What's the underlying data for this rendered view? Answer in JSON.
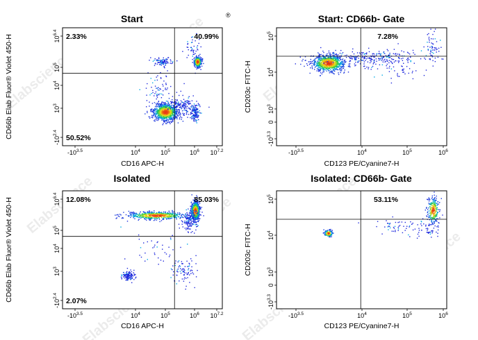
{
  "watermark": "Elabscience",
  "watermark_mark": "®",
  "chart_data": [
    {
      "type": "scatter",
      "title": "Start",
      "xlabel": "CD16 APC-H",
      "ylabel": "CD66b Elab Fluor® Violet 450-H",
      "x_ticks": [
        {
          "b": "-10",
          "e": "3.5"
        },
        {
          "b": "10",
          "e": "4"
        },
        {
          "b": "10",
          "e": "5"
        },
        {
          "b": "10",
          "e": "6"
        },
        {
          "b": "10",
          "e": "7.2"
        }
      ],
      "y_ticks": [
        {
          "b": "10",
          "e": "6.4"
        },
        {
          "b": "10",
          "e": "5"
        },
        {
          "b": "10",
          "e": "4"
        },
        {
          "b": "10",
          "e": "3"
        },
        {
          "b": "-10",
          "e": "2.4"
        }
      ],
      "x_range": [
        -3.5,
        7.2
      ],
      "y_range": [
        -2.4,
        6.4
      ],
      "gate": {
        "x": 4.0,
        "y": 3.0
      },
      "quadrants": {
        "top_left": "2.33%",
        "top_right": "40.99%",
        "bottom_left": "50.52%"
      },
      "populations": [
        {
          "x": 3.4,
          "y": 0.1,
          "sx": 0.42,
          "sy": 0.32,
          "n": 900,
          "dense": true
        },
        {
          "x": 5.55,
          "y": 3.85,
          "sx": 0.12,
          "sy": 0.2,
          "n": 380,
          "dense": true
        },
        {
          "x": 5.4,
          "y": 0.0,
          "sx": 0.15,
          "sy": 0.28,
          "n": 130,
          "dense": false
        },
        {
          "x": 3.2,
          "y": 3.85,
          "sx": 0.3,
          "sy": 0.15,
          "n": 90,
          "dense": false
        },
        {
          "x": 4.4,
          "y": 0.5,
          "sx": 0.6,
          "sy": 0.4,
          "n": 160,
          "dense": false
        },
        {
          "x": 5.2,
          "y": 4.8,
          "sx": 0.3,
          "sy": 0.5,
          "n": 40,
          "dense": false
        },
        {
          "x": 3.0,
          "y": 1.8,
          "sx": 0.5,
          "sy": 0.6,
          "n": 70,
          "dense": false
        }
      ]
    },
    {
      "type": "scatter",
      "title": "Start: CD66b- Gate",
      "xlabel": "CD123 PE/Cyanine7-H",
      "ylabel": "CD203c FITC-H",
      "x_ticks": [
        {
          "b": "-10",
          "e": "3.5"
        },
        {
          "b": "10",
          "e": "4"
        },
        {
          "b": "10",
          "e": "5"
        },
        {
          "b": "10",
          "e": "6"
        }
      ],
      "y_ticks": [
        {
          "b": "10",
          "e": "5"
        },
        {
          "b": "10",
          "e": "4"
        },
        {
          "b": "10",
          "e": "3"
        },
        {
          "b": "0",
          "e": ""
        },
        {
          "b": "-10",
          "e": "3.3"
        }
      ],
      "x_range": [
        -3.5,
        6.0
      ],
      "y_range": [
        -3.3,
        5.0
      ],
      "gate": {
        "x": 1.2,
        "y": 3.0
      },
      "quadrants": {
        "top_right": "7.28%"
      },
      "populations": [
        {
          "x": -0.6,
          "y": 2.5,
          "sx": 0.45,
          "sy": 0.3,
          "n": 800,
          "dense": true
        },
        {
          "x": 1.8,
          "y": 2.9,
          "sx": 1.3,
          "sy": 0.25,
          "n": 240,
          "dense": false
        },
        {
          "x": 5.2,
          "y": 3.6,
          "sx": 0.18,
          "sy": 0.6,
          "n": 60,
          "dense": false
        },
        {
          "x": 3.0,
          "y": 2.2,
          "sx": 1.3,
          "sy": 0.5,
          "n": 60,
          "dense": false
        }
      ]
    },
    {
      "type": "scatter",
      "title": "Isolated",
      "xlabel": "CD16 APC-H",
      "ylabel": "CD66b Elab Fluor® Violet 450-H",
      "x_ticks": [
        {
          "b": "-10",
          "e": "3.5"
        },
        {
          "b": "10",
          "e": "4"
        },
        {
          "b": "10",
          "e": "5"
        },
        {
          "b": "10",
          "e": "6"
        },
        {
          "b": "10",
          "e": "7.2"
        }
      ],
      "y_ticks": [
        {
          "b": "10",
          "e": "6.4"
        },
        {
          "b": "10",
          "e": "5"
        },
        {
          "b": "10",
          "e": "4"
        },
        {
          "b": "10",
          "e": "3"
        },
        {
          "b": "-10",
          "e": "2.4"
        }
      ],
      "x_range": [
        -3.5,
        7.2
      ],
      "y_range": [
        -2.4,
        6.4
      ],
      "gate": {
        "x": 4.0,
        "y": 3.0
      },
      "quadrants": {
        "top_left": "12.08%",
        "top_right": "85.03%",
        "bottom_left": "2.07%"
      },
      "populations": [
        {
          "x": 5.4,
          "y": 4.9,
          "sx": 0.14,
          "sy": 0.35,
          "n": 650,
          "dense": true
        },
        {
          "x": 2.8,
          "y": 4.55,
          "sx": 1.0,
          "sy": 0.14,
          "n": 550,
          "dense": true
        },
        {
          "x": 5.0,
          "y": 4.2,
          "sx": 0.25,
          "sy": 0.4,
          "n": 140,
          "dense": false
        },
        {
          "x": 0.9,
          "y": 0.05,
          "sx": 0.22,
          "sy": 0.18,
          "n": 110,
          "dense": false
        },
        {
          "x": 4.6,
          "y": 0.4,
          "sx": 0.4,
          "sy": 0.5,
          "n": 80,
          "dense": false
        },
        {
          "x": 3.0,
          "y": 2.0,
          "sx": 1.0,
          "sy": 0.7,
          "n": 40,
          "dense": false
        }
      ]
    },
    {
      "type": "scatter",
      "title": "Isolated: CD66b- Gate",
      "xlabel": "CD123 PE/Cyanine7-H",
      "ylabel": "CD203c FITC-H",
      "x_ticks": [
        {
          "b": "-10",
          "e": "3.5"
        },
        {
          "b": "10",
          "e": "4"
        },
        {
          "b": "10",
          "e": "5"
        },
        {
          "b": "10",
          "e": "6"
        }
      ],
      "y_ticks": [
        {
          "b": "10",
          "e": "5"
        },
        {
          "b": "10",
          "e": "4"
        },
        {
          "b": "10",
          "e": "3"
        },
        {
          "b": "0",
          "e": ""
        },
        {
          "b": "-10",
          "e": "3.3"
        }
      ],
      "x_range": [
        -3.5,
        6.0
      ],
      "y_range": [
        -3.3,
        5.0
      ],
      "gate": {
        "x": 1.2,
        "y": 3.0
      },
      "quadrants": {
        "top_right": "53.11%"
      },
      "populations": [
        {
          "x": -0.6,
          "y": 2.0,
          "sx": 0.12,
          "sy": 0.12,
          "n": 120,
          "dense": true
        },
        {
          "x": 5.25,
          "y": 3.6,
          "sx": 0.16,
          "sy": 0.45,
          "n": 260,
          "dense": true
        },
        {
          "x": 3.5,
          "y": 2.5,
          "sx": 0.9,
          "sy": 0.3,
          "n": 60,
          "dense": false
        },
        {
          "x": 5.0,
          "y": 2.3,
          "sx": 0.4,
          "sy": 0.3,
          "n": 40,
          "dense": false
        }
      ]
    }
  ]
}
